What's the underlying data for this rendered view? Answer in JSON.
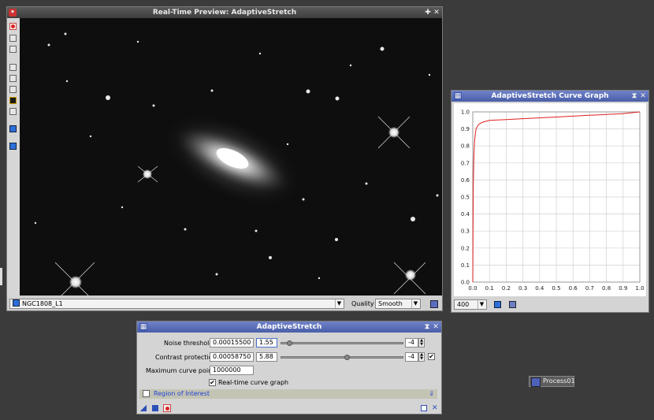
{
  "preview": {
    "title": "Real-Time Preview: AdaptiveStretch",
    "view_select": "NGC1808_L1",
    "quality_label": "Quality",
    "quality_value": "Smooth"
  },
  "curve": {
    "title": "AdaptiveStretch Curve Graph",
    "zoom_value": "400"
  },
  "chart_data": {
    "type": "line",
    "title": "",
    "xlabel": "",
    "ylabel": "",
    "xlim": [
      0,
      1
    ],
    "ylim": [
      0,
      1
    ],
    "x_ticks": [
      "0.0",
      "0.1",
      "0.2",
      "0.3",
      "0.4",
      "0.5",
      "0.6",
      "0.7",
      "0.8",
      "0.9",
      "1.0"
    ],
    "y_ticks": [
      "0.0",
      "0.1",
      "0.2",
      "0.3",
      "0.4",
      "0.5",
      "0.6",
      "0.7",
      "0.8",
      "0.9",
      "1.0"
    ],
    "grid": true,
    "x": [
      0,
      0.003,
      0.006,
      0.01,
      0.015,
      0.02,
      0.03,
      0.04,
      0.06,
      0.1,
      0.2,
      0.3,
      0.5,
      0.7,
      0.9,
      1.0
    ],
    "y": [
      0,
      0.55,
      0.72,
      0.82,
      0.87,
      0.9,
      0.92,
      0.93,
      0.94,
      0.95,
      0.955,
      0.96,
      0.97,
      0.98,
      0.99,
      1.0
    ],
    "line_color": "#e02020"
  },
  "as": {
    "title": "AdaptiveStretch",
    "noise_label": "Noise threshold:",
    "noise_value": "0.00015500",
    "noise_mant": "1.55",
    "noise_exp": "-4",
    "noise_level": 0.07,
    "contrast_label": "Contrast protection:",
    "contrast_value": "0.00058750",
    "contrast_mant": "5.88",
    "contrast_exp": "-4",
    "contrast_level": 0.54,
    "maxpoints_label": "Maximum curve points:",
    "maxpoints_value": "1000000",
    "rtgraph_label": "Real-time curve graph",
    "roi_label": "Region of Interest"
  },
  "process_icon": {
    "label": "Process01"
  }
}
